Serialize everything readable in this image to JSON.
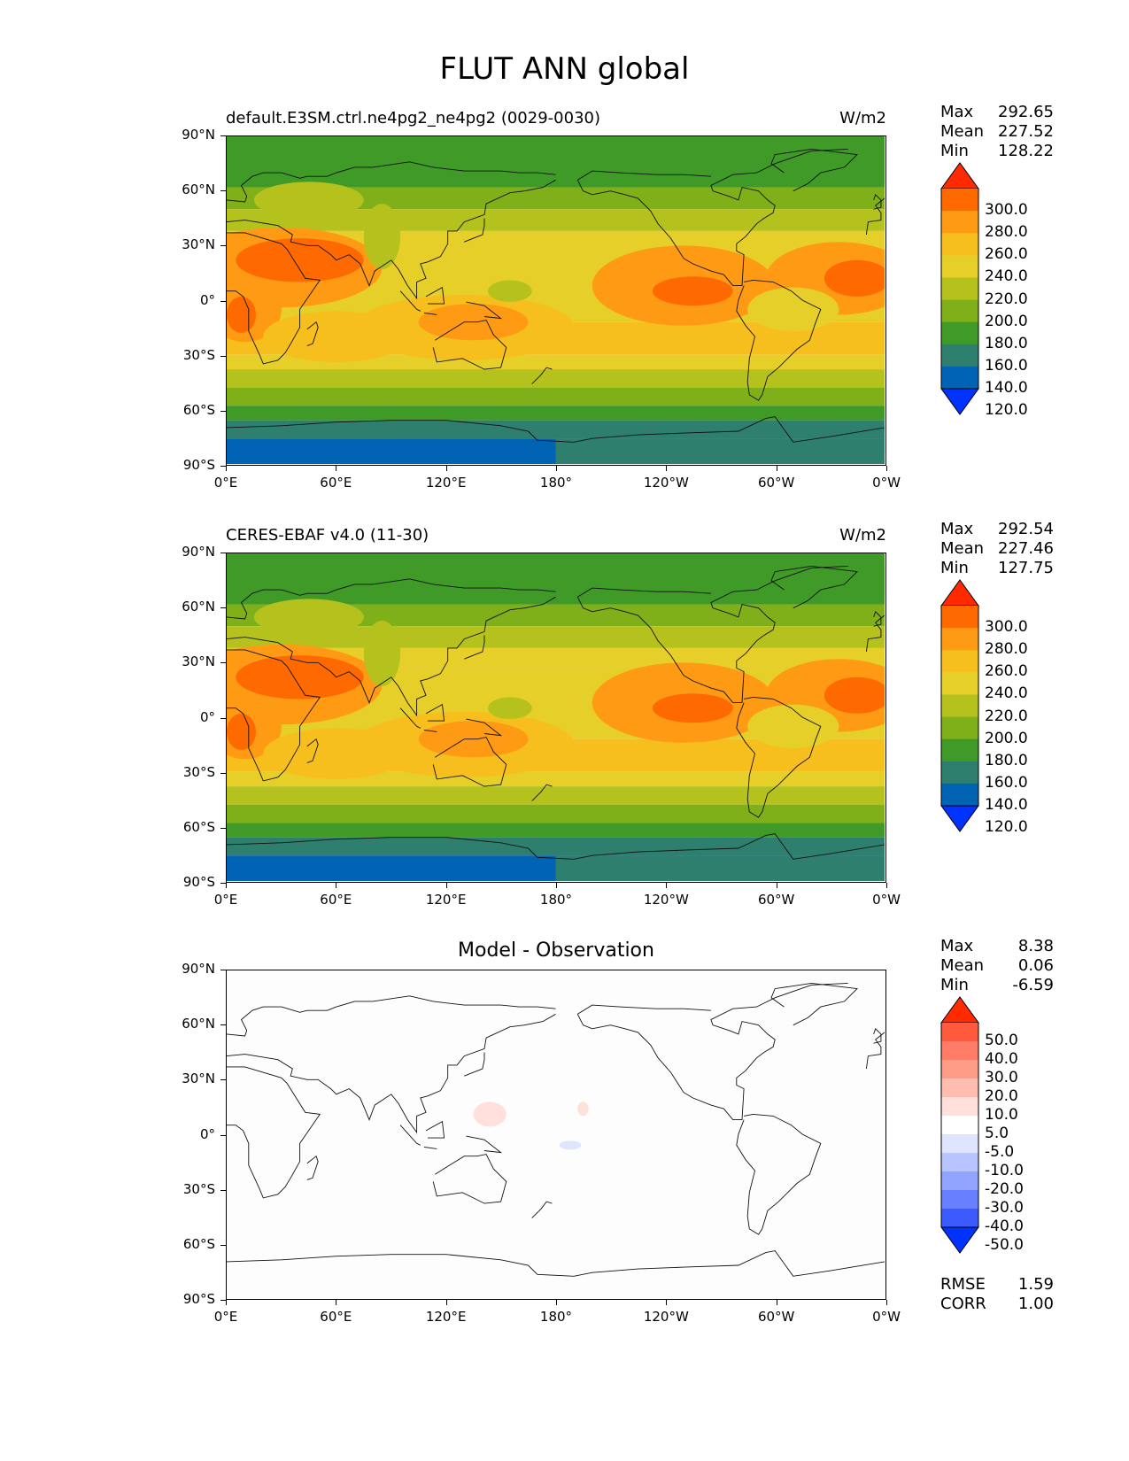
{
  "figure_title": "FLUT ANN global",
  "panels": [
    {
      "left_title": "default.E3SM.ctrl.ne4pg2_ne4pg2 (0029-0030)",
      "units": "W/m2",
      "center_title": "",
      "stats": [
        {
          "label": "Max",
          "value": "292.65"
        },
        {
          "label": "Mean",
          "value": "227.52"
        },
        {
          "label": "Min",
          "value": "128.22"
        }
      ],
      "colorbar": "absolute",
      "field": "model"
    },
    {
      "left_title": "CERES-EBAF v4.0 (11-30)",
      "units": "W/m2",
      "center_title": "",
      "stats": [
        {
          "label": "Max",
          "value": "292.54"
        },
        {
          "label": "Mean",
          "value": "227.46"
        },
        {
          "label": "Min",
          "value": "127.75"
        }
      ],
      "colorbar": "absolute",
      "field": "obs"
    },
    {
      "left_title": "",
      "units": "",
      "center_title": "Model - Observation",
      "stats": [
        {
          "label": "Max",
          "value": "8.38"
        },
        {
          "label": "Mean",
          "value": "0.06"
        },
        {
          "label": "Min",
          "value": "-6.59"
        }
      ],
      "colorbar": "diff",
      "field": "diff",
      "extra_stats": [
        {
          "label": "RMSE",
          "value": "1.59"
        },
        {
          "label": "CORR",
          "value": "1.00"
        }
      ]
    }
  ],
  "lat_labels": [
    "90°N",
    "60°N",
    "30°N",
    "0°",
    "30°S",
    "60°S",
    "90°S"
  ],
  "lon_labels": [
    "0°E",
    "60°E",
    "120°E",
    "180°",
    "120°W",
    "60°W",
    "0°W"
  ],
  "colorbars": {
    "absolute": {
      "labels": [
        "300.0",
        "280.0",
        "260.0",
        "240.0",
        "220.0",
        "200.0",
        "180.0",
        "160.0",
        "140.0",
        "120.0"
      ],
      "colors": [
        "#ff2a00",
        "#ff6a00",
        "#ff9a14",
        "#f7bf1e",
        "#e6cf28",
        "#b5c21e",
        "#7fb01a",
        "#3f9a28",
        "#2e7f6e",
        "#0063b3",
        "#0033ff"
      ]
    },
    "diff": {
      "labels": [
        "50.0",
        "40.0",
        "30.0",
        "20.0",
        "10.0",
        "5.0",
        "-5.0",
        "-10.0",
        "-20.0",
        "-30.0",
        "-40.0",
        "-50.0"
      ],
      "colors": [
        "#ff2a00",
        "#ff5a3c",
        "#ff7d66",
        "#ff9c88",
        "#ffbdb0",
        "#ffe0da",
        "#ffffff",
        "#dfe4ff",
        "#b7c4ff",
        "#8fa3ff",
        "#6680ff",
        "#3b5bff",
        "#0033ff"
      ]
    }
  }
}
